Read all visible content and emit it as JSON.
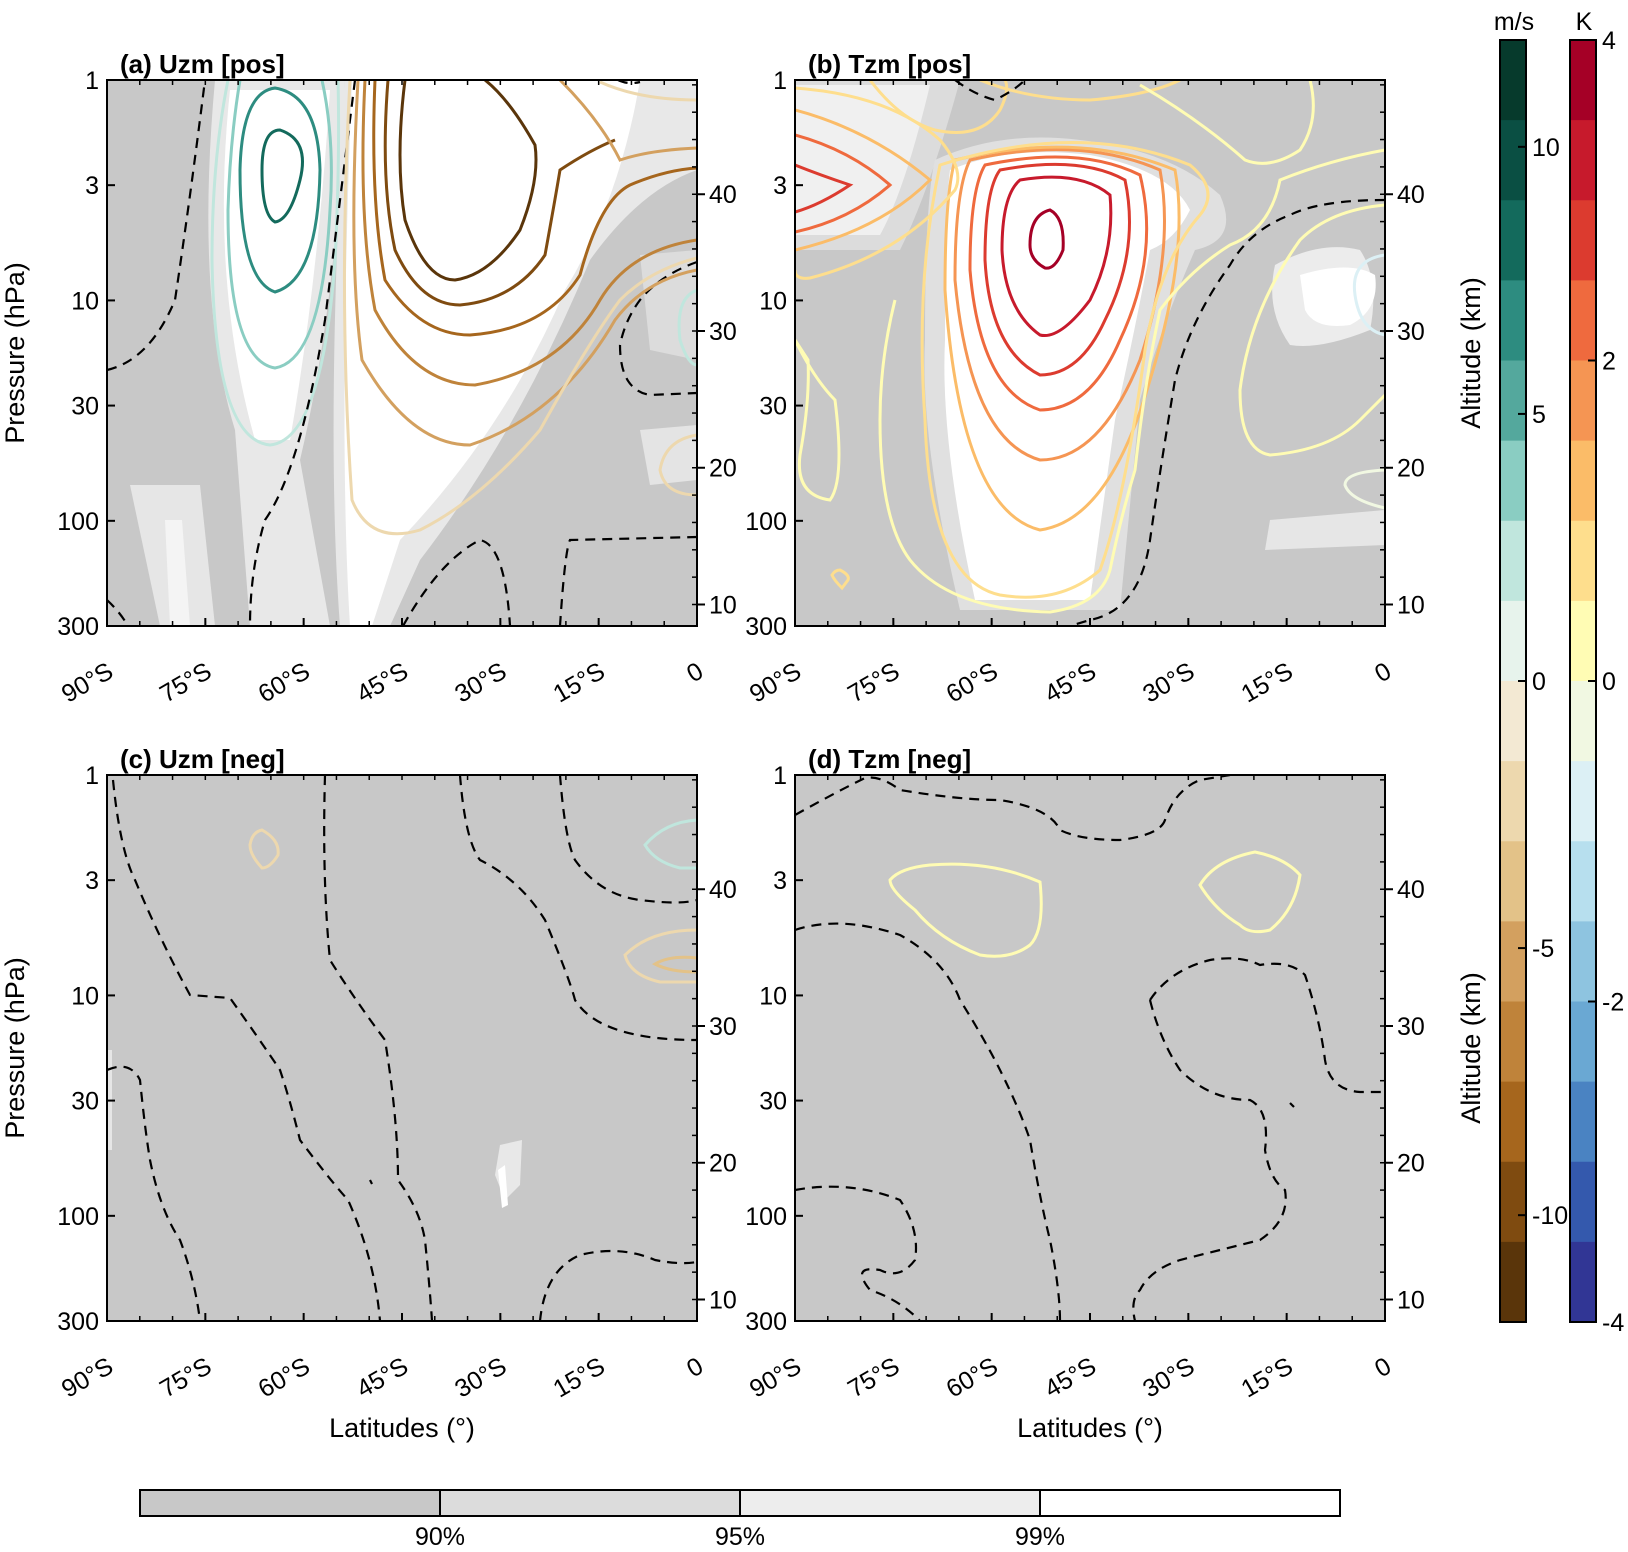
{
  "chart_data": [
    {
      "type": "contour",
      "title": "(a)  Uzm [pos]",
      "xlabel": "",
      "ylabel": "Pressure (hPa)",
      "y2label": "",
      "field": "U",
      "xticks": [
        "90°S",
        "75°S",
        "60°S",
        "45°S",
        "30°S",
        "15°S",
        "0"
      ],
      "xlim": [
        -90,
        0
      ],
      "yticks": [
        "1",
        "3",
        "10",
        "30",
        "100",
        "300"
      ],
      "ylim_hPa": [
        300,
        1
      ],
      "y_scale": "log",
      "y2ticks": [
        "10",
        "20",
        "30",
        "40"
      ],
      "significance_fill": "gray = below 90%; white regions = significant (mid-latitude jet core 60°S–25°S, 1–300 hPa)",
      "contours": [
        {
          "level": 12,
          "units": "m/s",
          "center_lat": -63,
          "center_hPa": 3,
          "approx_extent": "68°S–58°S, 1.8–5 hPa"
        },
        {
          "level": 9,
          "units": "m/s",
          "center_lat": -63,
          "center_hPa": 3.5,
          "approx_extent": "70°S–56°S, 1–10 hPa"
        },
        {
          "level": 6,
          "units": "m/s",
          "center_lat": -63,
          "center_hPa": 5,
          "approx_extent": "72°S–54°S, 1–20 hPa"
        },
        {
          "level": 3,
          "units": "m/s",
          "center_lat": -64,
          "center_hPa": 6,
          "approx_extent": "74°S–53°S, 1–40 hPa"
        },
        {
          "level": 0,
          "units": "m/s",
          "style": "dashed",
          "note": "zero lines bounding the positive cell and near 5°S"
        },
        {
          "level": -12,
          "units": "m/s",
          "center_lat": -35,
          "center_hPa": 2.5,
          "approx_extent": "45°S–25°S, 1–7 hPa"
        },
        {
          "level": -10,
          "units": "m/s",
          "approx_extent": "47°S–20°S, 1–9 hPa"
        },
        {
          "level": -8,
          "units": "m/s",
          "approx_extent": "48°S–15°S, 1–12 hPa"
        },
        {
          "level": -6,
          "units": "m/s",
          "approx_extent": "49°S–0, 1–18 hPa"
        },
        {
          "level": -4,
          "units": "m/s",
          "approx_extent": "50°S–0, 1–30 hPa"
        },
        {
          "level": -2,
          "units": "m/s",
          "approx_extent": "51°S–0, 1–100 hPa"
        }
      ]
    },
    {
      "type": "contour",
      "title": "(b)  Tzm [pos]",
      "xlabel": "",
      "ylabel": "",
      "y2label": "Altitude (km)",
      "field": "T",
      "xticks": [
        "90°S",
        "75°S",
        "60°S",
        "45°S",
        "30°S",
        "15°S",
        "0"
      ],
      "xlim": [
        -90,
        0
      ],
      "yticks": [
        "1",
        "3",
        "10",
        "30",
        "100",
        "300"
      ],
      "ylim_hPa": [
        300,
        1
      ],
      "y_scale": "log",
      "y2ticks": [
        "10",
        "20",
        "30",
        "40"
      ],
      "significance_fill": "white regions = significant (60°S–35°S column, 90°S–75°S near 3 hPa)",
      "contours": [
        {
          "level": 3.5,
          "units": "K",
          "center_lat": -49,
          "center_hPa": 5,
          "approx_extent": "52°S–46°S, 4–6.5 hPa"
        },
        {
          "level": 3,
          "units": "K",
          "approx_extent": "56°S–42°S, 2.5–10 hPa"
        },
        {
          "level": 2.5,
          "units": "K",
          "approx_extent": "58°S–39°S, 2–15 hPa"
        },
        {
          "level": 2,
          "units": "K",
          "approx_extent": "60°S–37°S, 1.8–25 hPa"
        },
        {
          "level": 1.5,
          "units": "K",
          "approx_extent": "62°S–35°S, 1.6–45 hPa"
        },
        {
          "level": 1,
          "units": "K",
          "approx_extent": "63°S–34°S, 1.5–100 hPa"
        },
        {
          "level": 0.5,
          "units": "K",
          "approx_extent": "65°S–32°S, 1–200 hPa"
        },
        {
          "level": 2,
          "units": "K",
          "center_lat": -88,
          "center_hPa": 3,
          "note": "polar cap warm cell"
        },
        {
          "level": 0,
          "units": "K",
          "style": "dashed",
          "note": "zero lines"
        }
      ]
    },
    {
      "type": "contour",
      "title": "(c)  Uzm [neg]",
      "xlabel": "Latitudes (°)",
      "ylabel": "Pressure (hPa)",
      "y2label": "",
      "field": "U",
      "xticks": [
        "90°S",
        "75°S",
        "60°S",
        "45°S",
        "30°S",
        "15°S",
        "0"
      ],
      "xlim": [
        -90,
        0
      ],
      "yticks": [
        "1",
        "3",
        "10",
        "30",
        "100",
        "300"
      ],
      "ylim_hPa": [
        300,
        1
      ],
      "y_scale": "log",
      "y2ticks": [
        "10",
        "20",
        "30",
        "40"
      ],
      "significance_fill": "almost entirely below 90% (gray)",
      "contours": [
        {
          "level": -2,
          "units": "m/s",
          "center_lat": -66,
          "center_hPa": 2.3,
          "note": "small closed cell"
        },
        {
          "level": 1,
          "units": "m/s",
          "center_lat": -3,
          "center_hPa": 2,
          "note": "small cell near equator"
        },
        {
          "level": -2,
          "units": "m/s",
          "center_lat": -3,
          "center_hPa": 6.5,
          "note": "small cell near equator"
        },
        {
          "level": -4,
          "units": "m/s",
          "center_lat": -2,
          "center_hPa": 6.5
        },
        {
          "level": 0,
          "units": "m/s",
          "style": "dashed",
          "note": "zero lines"
        }
      ]
    },
    {
      "type": "contour",
      "title": "(d)  Tzm [neg]",
      "xlabel": "Latitudes (°)",
      "ylabel": "",
      "y2label": "Altitude (km)",
      "field": "T",
      "xticks": [
        "90°S",
        "75°S",
        "60°S",
        "45°S",
        "30°S",
        "15°S",
        "0"
      ],
      "xlim": [
        -90,
        0
      ],
      "yticks": [
        "1",
        "3",
        "10",
        "30",
        "100",
        "300"
      ],
      "ylim_hPa": [
        300,
        1
      ],
      "y_scale": "log",
      "y2ticks": [
        "10",
        "20",
        "30",
        "40"
      ],
      "significance_fill": "entirely below 90% (gray)",
      "contours": [
        {
          "level": 0.3,
          "units": "K",
          "center_lat": -64,
          "center_hPa": 3.5,
          "note": "weak closed cell"
        },
        {
          "level": 0.3,
          "units": "K",
          "center_lat": -19,
          "center_hPa": 3.2,
          "note": "weak closed cell"
        },
        {
          "level": 0,
          "units": "K",
          "style": "dashed",
          "note": "zero lines"
        }
      ]
    },
    {
      "type": "colorbar",
      "label": "m/s",
      "orientation": "vertical",
      "range": [
        -12,
        12
      ],
      "ticks": [
        "10",
        "5",
        "0",
        "-5",
        "-10"
      ],
      "colors": [
        "#063a2c",
        "#0a4f43",
        "#136a5c",
        "#2d8c80",
        "#54a89d",
        "#8acdc2",
        "#c0e6dd",
        "#e7f3ec",
        "#f3e9d3",
        "#edd8ae",
        "#e3c288",
        "#d3a05f",
        "#bf833a",
        "#a6661d",
        "#7f4b10",
        "#5a350a"
      ]
    },
    {
      "type": "colorbar",
      "label": "K",
      "orientation": "vertical",
      "range": [
        -4,
        4
      ],
      "ticks": [
        "4",
        "2",
        "0",
        "-2",
        "-4"
      ],
      "colors": [
        "#a50026",
        "#c71a2c",
        "#dc3b2f",
        "#ef6a3e",
        "#f59553",
        "#fbbc68",
        "#fede8d",
        "#fffcb4",
        "#f1f8e2",
        "#dcf0f5",
        "#b7dfee",
        "#8ec4e0",
        "#6aa8d3",
        "#4a83c2",
        "#3459ad",
        "#313695"
      ]
    },
    {
      "type": "colorbar",
      "label": "",
      "orientation": "horizontal",
      "ticks": [
        "90%",
        "95%",
        "99%"
      ],
      "colors": [
        "#c8c8c8",
        "#dcdcdc",
        "#ededed",
        "#ffffff"
      ]
    }
  ]
}
